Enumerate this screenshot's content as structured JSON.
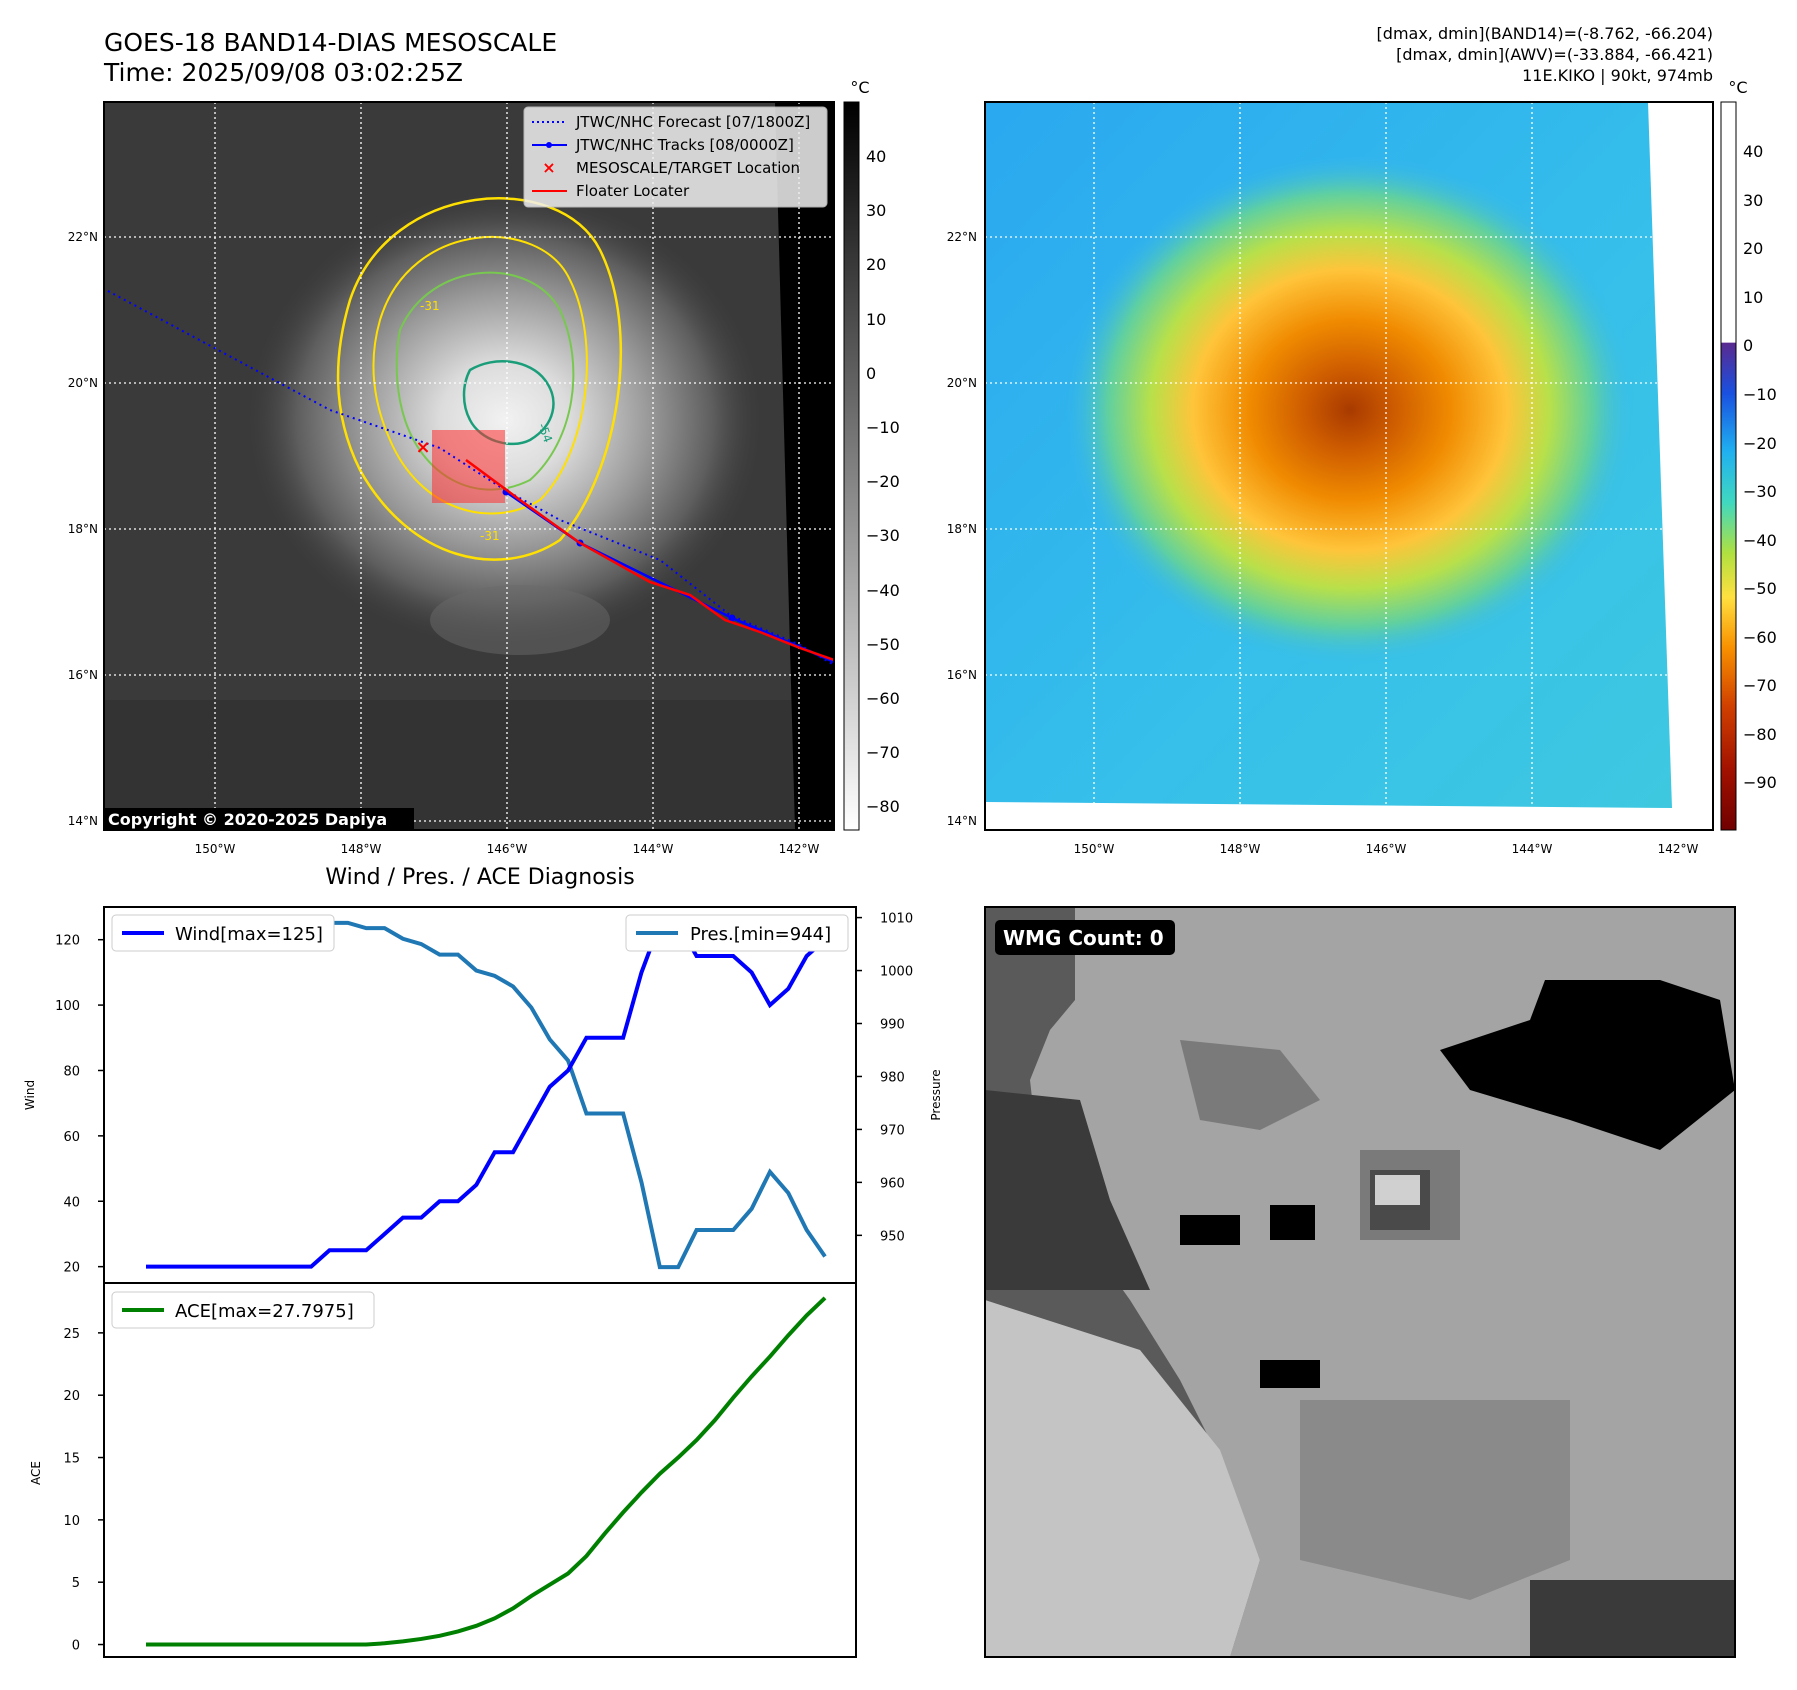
{
  "header": {
    "title_line1": "GOES-18 BAND14-DIAS MESOSCALE",
    "title_line2": "Time: 2025/09/08 03:02:25Z",
    "stats_line1": "[dmax, dmin](BAND14)=(-8.762, -66.204)",
    "stats_line2": "[dmax, dmin](AWV)=(-33.884, -66.421)",
    "stats_line3": "11E.KIKO | 90kt, 974mb"
  },
  "ir_map": {
    "lat_ticks": [
      "22°N",
      "20°N",
      "18°N",
      "16°N",
      "14°N"
    ],
    "lon_ticks": [
      "150°W",
      "148°W",
      "146°W",
      "144°W",
      "142°W"
    ],
    "colorbar_unit": "°C",
    "colorbar_ticks": [
      "40",
      "30",
      "20",
      "10",
      "0",
      "−10",
      "−20",
      "−30",
      "−40",
      "−50",
      "−60",
      "−70",
      "−80"
    ],
    "legend": {
      "forecast": "JTWC/NHC Forecast [07/1800Z]",
      "tracks": "JTWC/NHC Tracks [08/0000Z]",
      "target": "MESOSCALE/TARGET Location",
      "floater": "Floater Locater"
    },
    "contour_labels": [
      "-54",
      "-31",
      "-31"
    ],
    "copyright": "Copyright © 2020-2025 Dapiya"
  },
  "awv_map": {
    "lat_ticks": [
      "22°N",
      "20°N",
      "18°N",
      "16°N",
      "14°N"
    ],
    "lon_ticks": [
      "150°W",
      "148°W",
      "146°W",
      "144°W",
      "142°W"
    ],
    "colorbar_unit": "°C",
    "colorbar_ticks": [
      "40",
      "30",
      "20",
      "10",
      "0",
      "−10",
      "−20",
      "−30",
      "−40",
      "−50",
      "−60",
      "−70",
      "−80",
      "−90"
    ]
  },
  "wmg_panel": {
    "label": "WMG Count: 0"
  },
  "colors": {
    "wind": "#0000ff",
    "pressure": "#1f77b4",
    "ace": "#008000",
    "forecast": "#0000ff",
    "floater": "#ff0000",
    "contour_cold": "#ffe000",
    "contour_mid": "#78c850",
    "contour_core": "#1a9e7a"
  },
  "chart_data": [
    {
      "type": "line",
      "title": "Wind / Pres. / ACE Diagnosis",
      "x": [
        0,
        1,
        2,
        3,
        4,
        5,
        6,
        7,
        8,
        9,
        10,
        11,
        12,
        13,
        14,
        15,
        16,
        17,
        18,
        19,
        20,
        21,
        22,
        23,
        24,
        25,
        26,
        27,
        28,
        29,
        30,
        31,
        32,
        33,
        34,
        35,
        36,
        37
      ],
      "series": [
        {
          "name": "Wind[max=125]",
          "axis": "left",
          "values": [
            20,
            20,
            20,
            20,
            20,
            20,
            20,
            20,
            20,
            20,
            25,
            25,
            25,
            30,
            35,
            35,
            40,
            40,
            45,
            55,
            55,
            65,
            75,
            80,
            90,
            90,
            90,
            110,
            125,
            125,
            115,
            115,
            115,
            110,
            100,
            105,
            115,
            120
          ]
        },
        {
          "name": "Pres.[min=944]",
          "axis": "right",
          "values": [
            1010,
            1010,
            1010,
            1010,
            1010,
            1010,
            1010,
            1010,
            1010,
            1009,
            1009,
            1009,
            1008,
            1008,
            1006,
            1005,
            1003,
            1003,
            1000,
            999,
            997,
            993,
            987,
            983,
            973,
            973,
            973,
            960,
            944,
            944,
            951,
            951,
            951,
            955,
            962,
            958,
            951,
            946
          ]
        }
      ],
      "ylabel": "Wind",
      "y2label": "Pressure",
      "ylim": [
        15,
        130
      ],
      "y2lim": [
        941,
        1012
      ],
      "yticks": [
        20,
        40,
        60,
        80,
        100,
        120
      ],
      "y2ticks": [
        950,
        960,
        970,
        980,
        990,
        1000,
        1010
      ]
    },
    {
      "type": "line",
      "x": [
        0,
        1,
        2,
        3,
        4,
        5,
        6,
        7,
        8,
        9,
        10,
        11,
        12,
        13,
        14,
        15,
        16,
        17,
        18,
        19,
        20,
        21,
        22,
        23,
        24,
        25,
        26,
        27,
        28,
        29,
        30,
        31,
        32,
        33,
        34,
        35,
        36,
        37
      ],
      "series": [
        {
          "name": "ACE[max=27.7975]",
          "axis": "left",
          "values": [
            0,
            0,
            0,
            0,
            0,
            0,
            0,
            0,
            0,
            0,
            0,
            0,
            0,
            0.1,
            0.25,
            0.45,
            0.7,
            1.05,
            1.5,
            2.1,
            2.9,
            3.9,
            4.8,
            5.7,
            7.1,
            8.9,
            10.6,
            12.2,
            13.7,
            15.0,
            16.4,
            18.0,
            19.8,
            21.5,
            23.1,
            24.8,
            26.4,
            27.8
          ]
        }
      ],
      "ylabel": "ACE",
      "ylim": [
        -1,
        29
      ],
      "yticks": [
        0,
        5,
        10,
        15,
        20,
        25
      ]
    }
  ]
}
